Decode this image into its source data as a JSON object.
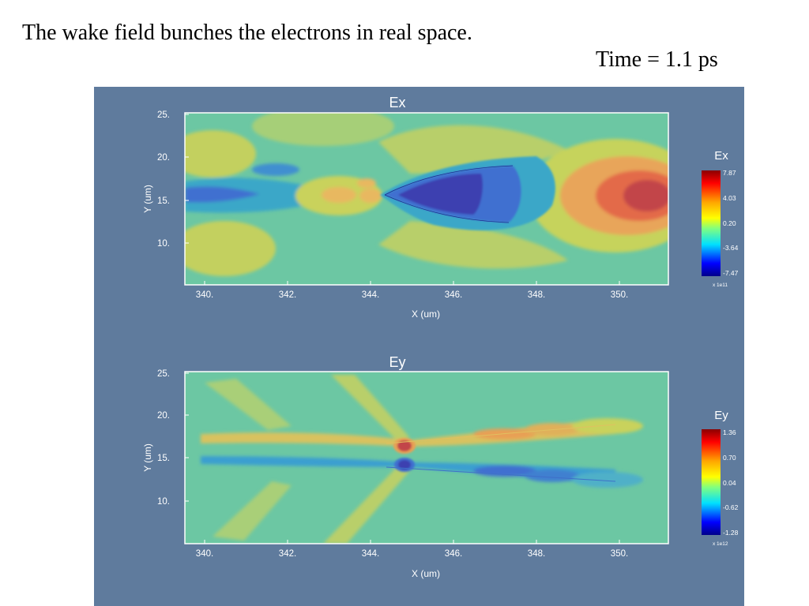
{
  "slide": {
    "caption": "The wake field bunches the electrons in real space.",
    "time_label": "Time = 1.1 ps"
  },
  "chart_data": [
    {
      "type": "heatmap",
      "title": "Ex",
      "xlabel": "X (um)",
      "ylabel": "Y (um)",
      "xlim": [
        339.6,
        351.2
      ],
      "ylim": [
        5.0,
        25.4
      ],
      "x_ticks": [
        "340.",
        "342.",
        "344.",
        "346.",
        "348.",
        "350."
      ],
      "x_tick_values": [
        340,
        342,
        344,
        346,
        348,
        350
      ],
      "y_ticks": [
        "25.",
        "20.",
        "15.",
        "10."
      ],
      "y_tick_values": [
        25,
        20,
        15,
        10
      ],
      "colorbar": {
        "title": "Ex",
        "labels": [
          "7.87",
          "4.03",
          "0.20",
          "-3.64",
          "-7.47"
        ],
        "values": [
          7.87,
          4.03,
          0.2,
          -3.64,
          -7.47
        ],
        "multiplier": "x 1e11"
      }
    },
    {
      "type": "heatmap",
      "title": "Ey",
      "xlabel": "X (um)",
      "ylabel": "Y (um)",
      "xlim": [
        339.6,
        351.2
      ],
      "ylim": [
        5.0,
        25.4
      ],
      "x_ticks": [
        "340.",
        "342.",
        "344.",
        "346.",
        "348.",
        "350."
      ],
      "x_tick_values": [
        340,
        342,
        344,
        346,
        348,
        350
      ],
      "y_ticks": [
        "25.",
        "20.",
        "15.",
        "10."
      ],
      "y_tick_values": [
        25,
        20,
        15,
        10
      ],
      "colorbar": {
        "title": "Ey",
        "labels": [
          "1.36",
          "0.70",
          "0.04",
          "-0.62",
          "-1.28"
        ],
        "values": [
          1.36,
          0.7,
          0.04,
          -0.62,
          -1.28
        ],
        "multiplier": "x 1e12"
      }
    }
  ],
  "colors": {
    "panel_bg": "#5f7b9d",
    "field_bg": "#6cc7a3",
    "yellow": "#c9d25c",
    "orange": "#e8a55a",
    "red": "#e05a4a",
    "darkred": "#c2454a",
    "cyan": "#3aa7c8",
    "blue": "#3f6fd0",
    "navy": "#3c3fb0"
  }
}
